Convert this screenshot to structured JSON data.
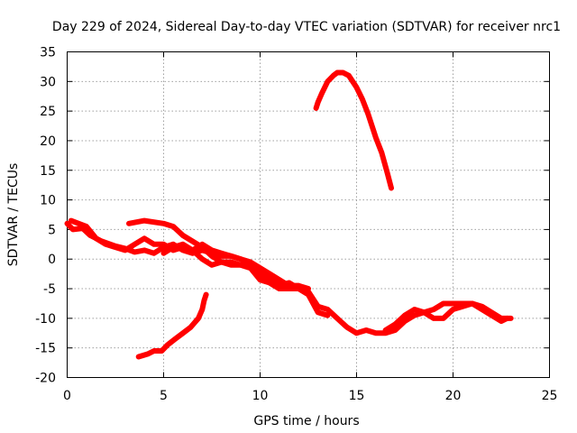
{
  "chart_data": {
    "type": "line",
    "title": "Day 229 of 2024, Sidereal Day-to-day VTEC variation (SDTVAR) for receiver nrc1",
    "xlabel": "GPS time / hours",
    "ylabel": "SDTVAR / TECUs",
    "xlim": [
      0,
      25
    ],
    "ylim": [
      -20,
      35
    ],
    "xticks": [
      0,
      5,
      10,
      15,
      20,
      25
    ],
    "yticks": [
      -20,
      -15,
      -10,
      -5,
      0,
      5,
      10,
      15,
      20,
      25,
      30,
      35
    ],
    "grid": true,
    "series_color": "#ff0000",
    "series": [
      {
        "name": "trace-main-1",
        "points": [
          [
            0.0,
            6.0
          ],
          [
            0.3,
            5.0
          ],
          [
            0.8,
            5.2
          ],
          [
            1.2,
            4.0
          ],
          [
            1.8,
            3.0
          ],
          [
            2.5,
            2.2
          ],
          [
            3.0,
            1.8
          ],
          [
            3.5,
            1.2
          ],
          [
            4.0,
            1.5
          ],
          [
            4.5,
            1.0
          ],
          [
            5.0,
            2.0
          ],
          [
            5.5,
            2.5
          ],
          [
            6.0,
            1.5
          ],
          [
            6.5,
            1.0
          ],
          [
            7.0,
            1.5
          ],
          [
            7.5,
            1.0
          ],
          [
            8.0,
            0.5
          ],
          [
            8.5,
            0.5
          ],
          [
            9.0,
            0.0
          ],
          [
            9.5,
            -0.5
          ],
          [
            10.0,
            -1.5
          ],
          [
            10.5,
            -2.5
          ],
          [
            11.0,
            -3.5
          ],
          [
            11.5,
            -4.5
          ],
          [
            12.0,
            -4.5
          ],
          [
            12.5,
            -5.5
          ],
          [
            13.0,
            -8.0
          ],
          [
            13.5,
            -8.5
          ],
          [
            14.0,
            -10.0
          ],
          [
            14.5,
            -11.5
          ],
          [
            15.0,
            -12.5
          ],
          [
            15.5,
            -12.0
          ],
          [
            16.0,
            -12.5
          ],
          [
            16.5,
            -12.5
          ],
          [
            17.0,
            -12.0
          ],
          [
            17.5,
            -10.5
          ],
          [
            18.0,
            -9.5
          ],
          [
            18.5,
            -9.0
          ],
          [
            19.0,
            -8.5
          ],
          [
            19.5,
            -7.5
          ],
          [
            20.0,
            -7.5
          ],
          [
            20.5,
            -7.5
          ],
          [
            21.0,
            -7.5
          ],
          [
            21.5,
            -8.0
          ],
          [
            22.0,
            -9.0
          ],
          [
            22.5,
            -10.0
          ],
          [
            23.0,
            -10.0
          ]
        ]
      },
      {
        "name": "trace-main-2",
        "points": [
          [
            0.2,
            6.5
          ],
          [
            0.6,
            6.0
          ],
          [
            1.0,
            5.5
          ],
          [
            1.5,
            3.5
          ],
          [
            2.0,
            2.5
          ],
          [
            2.5,
            2.0
          ],
          [
            3.0,
            1.5
          ],
          [
            3.5,
            2.5
          ],
          [
            4.0,
            3.5
          ],
          [
            4.5,
            2.5
          ],
          [
            5.0,
            2.5
          ],
          [
            5.5,
            1.5
          ],
          [
            6.0,
            2.0
          ],
          [
            6.5,
            1.5
          ],
          [
            7.0,
            2.5
          ],
          [
            7.5,
            1.5
          ],
          [
            8.0,
            1.0
          ],
          [
            8.5,
            0.5
          ],
          [
            9.0,
            0.0
          ],
          [
            9.5,
            -1.0
          ],
          [
            10.0,
            -2.5
          ],
          [
            10.5,
            -3.5
          ],
          [
            11.0,
            -4.5
          ],
          [
            11.5,
            -4.0
          ],
          [
            12.0,
            -5.0
          ],
          [
            12.5,
            -6.0
          ],
          [
            13.0,
            -9.0
          ],
          [
            13.5,
            -9.5
          ]
        ]
      },
      {
        "name": "trace-main-3",
        "points": [
          [
            3.2,
            6.0
          ],
          [
            4.0,
            6.5
          ],
          [
            5.0,
            6.0
          ],
          [
            5.5,
            5.5
          ],
          [
            6.0,
            4.0
          ],
          [
            6.5,
            3.0
          ],
          [
            7.0,
            2.0
          ],
          [
            7.5,
            0.5
          ],
          [
            8.0,
            -0.5
          ],
          [
            8.5,
            -1.0
          ],
          [
            9.0,
            -1.0
          ],
          [
            9.5,
            -1.5
          ],
          [
            10.0,
            -2.5
          ],
          [
            10.5,
            -4.0
          ],
          [
            11.0,
            -5.0
          ],
          [
            11.5,
            -4.5
          ],
          [
            12.0,
            -4.5
          ],
          [
            12.5,
            -5.0
          ]
        ]
      },
      {
        "name": "trace-main-4",
        "points": [
          [
            5.0,
            1.0
          ],
          [
            5.5,
            2.0
          ],
          [
            6.0,
            2.5
          ],
          [
            6.5,
            1.5
          ],
          [
            7.0,
            0.0
          ],
          [
            7.5,
            -1.0
          ],
          [
            8.0,
            -0.5
          ],
          [
            8.5,
            -0.5
          ],
          [
            9.0,
            -1.0
          ],
          [
            9.5,
            -1.5
          ],
          [
            10.0,
            -3.5
          ],
          [
            10.5,
            -4.0
          ],
          [
            11.0,
            -5.0
          ],
          [
            11.5,
            -5.0
          ],
          [
            12.0,
            -5.0
          ]
        ]
      },
      {
        "name": "trace-main-5",
        "points": [
          [
            16.5,
            -12.0
          ],
          [
            17.0,
            -11.0
          ],
          [
            17.5,
            -9.5
          ],
          [
            18.0,
            -8.5
          ],
          [
            18.5,
            -9.0
          ],
          [
            19.0,
            -10.0
          ],
          [
            19.5,
            -10.0
          ],
          [
            20.0,
            -8.5
          ],
          [
            20.5,
            -8.0
          ],
          [
            21.0,
            -7.5
          ],
          [
            21.5,
            -8.5
          ],
          [
            22.0,
            -9.5
          ],
          [
            22.5,
            -10.5
          ],
          [
            22.8,
            -10.0
          ]
        ]
      },
      {
        "name": "trace-low-rising",
        "points": [
          [
            3.7,
            -16.5
          ],
          [
            4.2,
            -16.0
          ],
          [
            4.5,
            -15.5
          ],
          [
            4.9,
            -15.5
          ],
          [
            5.2,
            -14.5
          ],
          [
            5.6,
            -13.5
          ],
          [
            6.0,
            -12.5
          ],
          [
            6.4,
            -11.5
          ],
          [
            6.8,
            -10.0
          ],
          [
            7.0,
            -8.5
          ],
          [
            7.1,
            -7.0
          ],
          [
            7.2,
            -6.0
          ]
        ]
      },
      {
        "name": "trace-high-arc",
        "points": [
          [
            12.9,
            25.5
          ],
          [
            13.0,
            26.5
          ],
          [
            13.2,
            28.0
          ],
          [
            13.5,
            30.0
          ],
          [
            13.8,
            31.0
          ],
          [
            14.0,
            31.5
          ],
          [
            14.3,
            31.5
          ],
          [
            14.6,
            31.0
          ],
          [
            15.0,
            29.0
          ],
          [
            15.3,
            27.0
          ],
          [
            15.6,
            24.5
          ],
          [
            16.0,
            20.5
          ],
          [
            16.3,
            18.0
          ],
          [
            16.6,
            14.5
          ],
          [
            16.8,
            12.0
          ]
        ]
      }
    ]
  }
}
